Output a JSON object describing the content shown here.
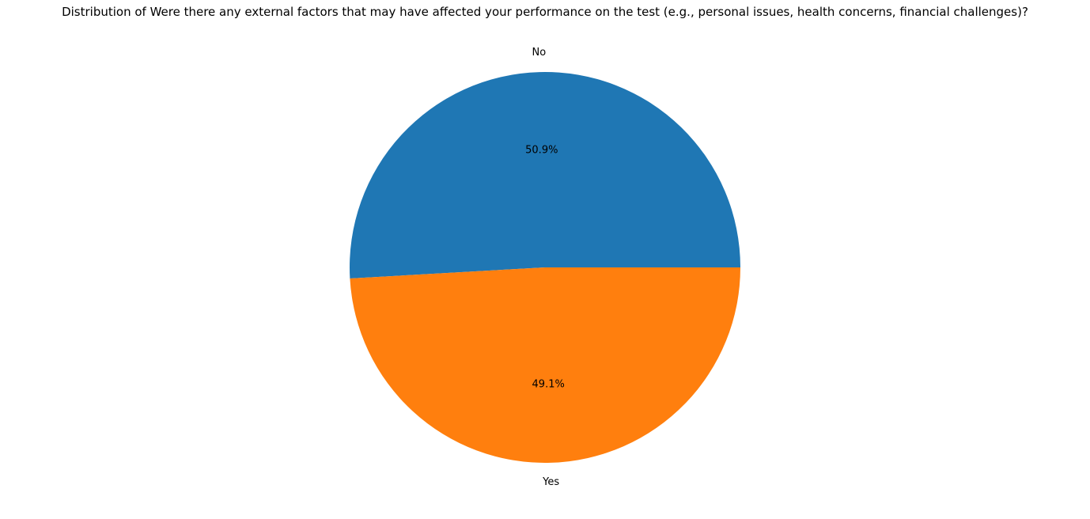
{
  "chart_data": {
    "type": "pie",
    "title": "Distribution of Were there any external factors that may have affected your performance on the test (e.g., personal issues, health concerns, financial challenges)?",
    "slices": [
      {
        "label": "No",
        "value": 50.9,
        "pct_label": "50.9%",
        "color": "#1f77b4"
      },
      {
        "label": "Yes",
        "value": 49.1,
        "pct_label": "49.1%",
        "color": "#ff7f0e"
      }
    ]
  }
}
